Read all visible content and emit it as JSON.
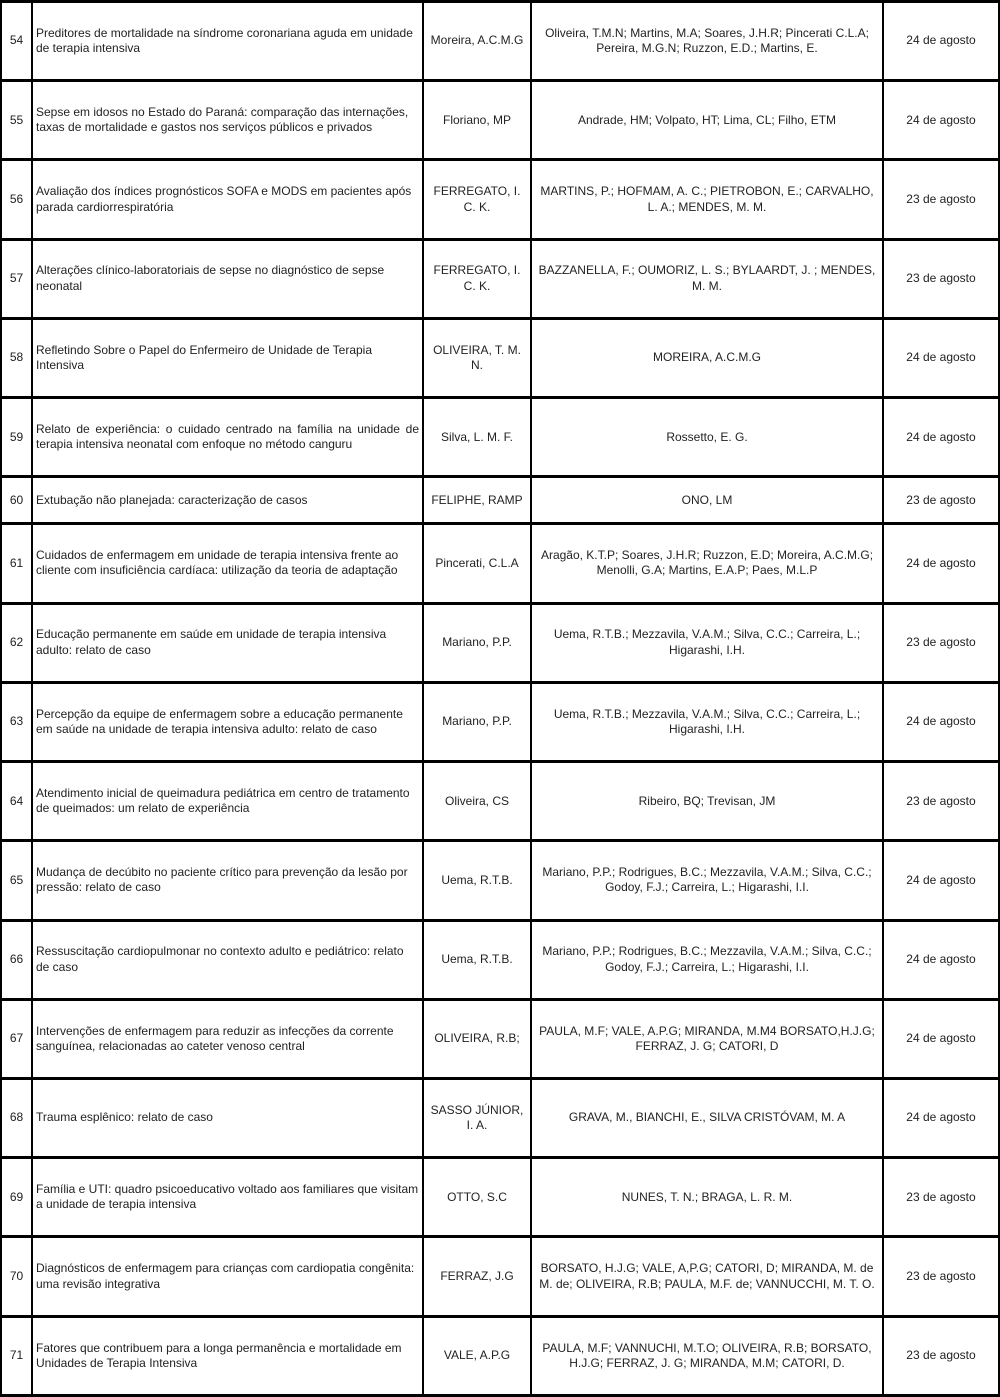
{
  "table": {
    "rows": [
      {
        "number": "54",
        "title": "Preditores de mortalidade na síndrome coronariana aguda em unidade de terapia intensiva",
        "author": "Moreira, A.C.M.G",
        "coauthors": "Oliveira, T.M.N; Martins, M.A; Soares, J.H.R; Pincerati C.L.A; Pereira, M.G.N; Ruzzon, E.D.; Martins, E.",
        "date": "24 de agosto"
      },
      {
        "number": "55",
        "title": "Sepse em idosos no Estado do Paraná: comparação das internações, taxas de mortalidade e gastos nos serviços públicos e privados",
        "author": "Floriano, MP",
        "coauthors": "Andrade, HM; Volpato, HT; Lima, CL; Filho, ETM",
        "date": "24 de agosto"
      },
      {
        "number": "56",
        "title": "Avaliação dos índices prognósticos SOFA e MODS em pacientes após parada cardiorrespiratória",
        "author": "FERREGATO, I. C. K.",
        "coauthors": "MARTINS, P.; HOFMAM, A. C.; PIETROBON, E.; CARVALHO, L. A.; MENDES, M. M.",
        "date": "23 de agosto"
      },
      {
        "number": "57",
        "title": "Alterações clínico-laboratoriais de sepse no diagnóstico de sepse neonatal",
        "author": "FERREGATO, I. C. K.",
        "coauthors": "BAZZANELLA, F.; OUMORIZ, L. S.; BYLAARDT, J. ; MENDES, M. M.",
        "date": "23 de agosto"
      },
      {
        "number": "58",
        "title": "Refletindo Sobre o Papel do Enfermeiro de Unidade de Terapia Intensiva",
        "author": "OLIVEIRA, T. M. N.",
        "coauthors": "MOREIRA, A.C.M.G",
        "date": "24 de agosto"
      },
      {
        "number": "59",
        "title": "Relato de experiência: o cuidado centrado na família na unidade de terapia intensiva neonatal com enfoque no método canguru",
        "title_justify": true,
        "author": "Silva, L. M. F.",
        "coauthors": "Rossetto, E. G.",
        "date": "24 de agosto"
      },
      {
        "number": "60",
        "title": "Extubação não planejada: caracterização de casos",
        "author": "FELIPHE, RAMP",
        "coauthors": "ONO, LM",
        "date": "23 de agosto"
      },
      {
        "number": "61",
        "title": "Cuidados de enfermagem em unidade de terapia intensiva frente ao cliente com insuficiência cardíaca: utilização da teoria de adaptação",
        "author": "Pincerati, C.L.A",
        "coauthors": "Aragão, K.T.P; Soares, J.H.R; Ruzzon, E.D; Moreira, A.C.M.G; Menolli, G.A; Martins, E.A.P; Paes, M.L.P",
        "date": "24 de agosto"
      },
      {
        "number": "62",
        "title": "Educação permanente em saúde em unidade de terapia intensiva adulto: relato de caso",
        "author": "Mariano, P.P.",
        "coauthors": "Uema, R.T.B.; Mezzavila, V.A.M.; Silva, C.C.; Carreira, L.; Higarashi, I.H.",
        "date": "23 de agosto"
      },
      {
        "number": "63",
        "title": "Percepção da equipe de enfermagem sobre a educação permanente em saúde na unidade de terapia intensiva adulto: relato de caso",
        "author": "Mariano, P.P.",
        "coauthors": "Uema, R.T.B.; Mezzavila, V.A.M.; Silva, C.C.; Carreira, L.; Higarashi, I.H.",
        "date": "24 de agosto"
      },
      {
        "number": "64",
        "title": "Atendimento inicial de queimadura pediátrica em centro de tratamento de queimados: um relato de experiência",
        "author": "Oliveira, CS",
        "coauthors": "Ribeiro, BQ; Trevisan, JM",
        "date": "23 de agosto"
      },
      {
        "number": "65",
        "title": "Mudança de decúbito no paciente crítico para prevenção da lesão por pressão: relato de caso",
        "author": "Uema, R.T.B.",
        "coauthors": "Mariano, P.P.; Rodrigues, B.C.; Mezzavila, V.A.M.; Silva, C.C.; Godoy, F.J.; Carreira, L.; Higarashi, I.I.",
        "date": "24 de agosto"
      },
      {
        "number": "66",
        "title": "Ressuscitação cardiopulmonar no contexto adulto e pediátrico: relato de caso",
        "author": "Uema, R.T.B.",
        "coauthors": "Mariano, P.P.; Rodrigues, B.C.; Mezzavila, V.A.M.; Silva, C.C.; Godoy, F.J.; Carreira, L.; Higarashi, I.I.",
        "date": "24 de agosto"
      },
      {
        "number": "67",
        "title": "Intervenções de enfermagem para reduzir as infecções da corrente sanguínea, relacionadas ao cateter venoso central",
        "author": "OLIVEIRA, R.B;",
        "coauthors": "PAULA, M.F; VALE, A.P.G; MIRANDA, M.M4 BORSATO,H.J.G; FERRAZ, J. G; CATORI, D",
        "date": "24 de agosto"
      },
      {
        "number": "68",
        "title": "Trauma esplênico: relato de caso",
        "author": "SASSO JÚNIOR, I. A.",
        "coauthors": "GRAVA, M., BIANCHI, E., SILVA CRISTÓVAM, M. A",
        "date": "24 de agosto"
      },
      {
        "number": "69",
        "title": "Família e UTI: quadro psicoeducativo voltado aos familiares que visitam a unidade de terapia intensiva",
        "author": "OTTO, S.C",
        "coauthors": "NUNES, T. N.; BRAGA, L. R. M.",
        "date": "23 de agosto"
      },
      {
        "number": "70",
        "title": "Diagnósticos de enfermagem para crianças com cardiopatia congênita: uma revisão integrativa",
        "author": "FERRAZ, J.G",
        "coauthors": "BORSATO, H.J.G; VALE, A,P.G; CATORI, D; MIRANDA, M. de M. de; OLIVEIRA, R.B; PAULA, M.F. de; VANNUCCHI, M. T. O.",
        "date": "23 de agosto"
      },
      {
        "number": "71",
        "title": "Fatores que contribuem para a longa permanência e mortalidade em Unidades de Terapia Intensiva",
        "author": "VALE, A.P.G",
        "coauthors": "PAULA, M.F; VANNUCHI, M.T.O; OLIVEIRA, R.B; BORSATO, H.J.G; FERRAZ, J. G; MIRANDA, M.M; CATORI, D.",
        "date": "23 de agosto"
      }
    ]
  }
}
